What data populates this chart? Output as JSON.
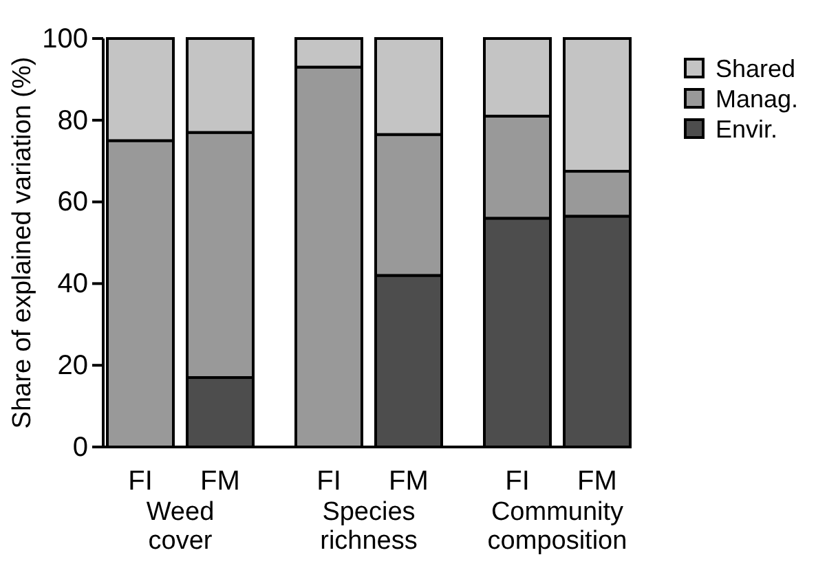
{
  "chart_data": {
    "type": "bar",
    "stacked": true,
    "ylabel": "Share of explained variation (%)",
    "categories": [
      "FI",
      "FM",
      "FI",
      "FM",
      "FI",
      "FM"
    ],
    "annotations": [
      "Weed cover",
      "Species richness",
      "Community composition"
    ],
    "ylim": [
      0,
      100
    ],
    "yticks": [
      0,
      20,
      40,
      60,
      80,
      100
    ],
    "grid": false,
    "legend": "top right",
    "series": [
      {
        "name": "Envir.",
        "color": "#4d4d4d",
        "values": [
          0,
          17,
          0,
          42,
          56,
          56.5
        ]
      },
      {
        "name": "Manag.",
        "color": "#999999",
        "values": [
          75,
          60,
          93,
          34.5,
          25,
          11
        ]
      },
      {
        "name": "Shared",
        "color": "#c4c4c4",
        "values": [
          25,
          23,
          7,
          23.5,
          19,
          32.5
        ]
      }
    ]
  }
}
